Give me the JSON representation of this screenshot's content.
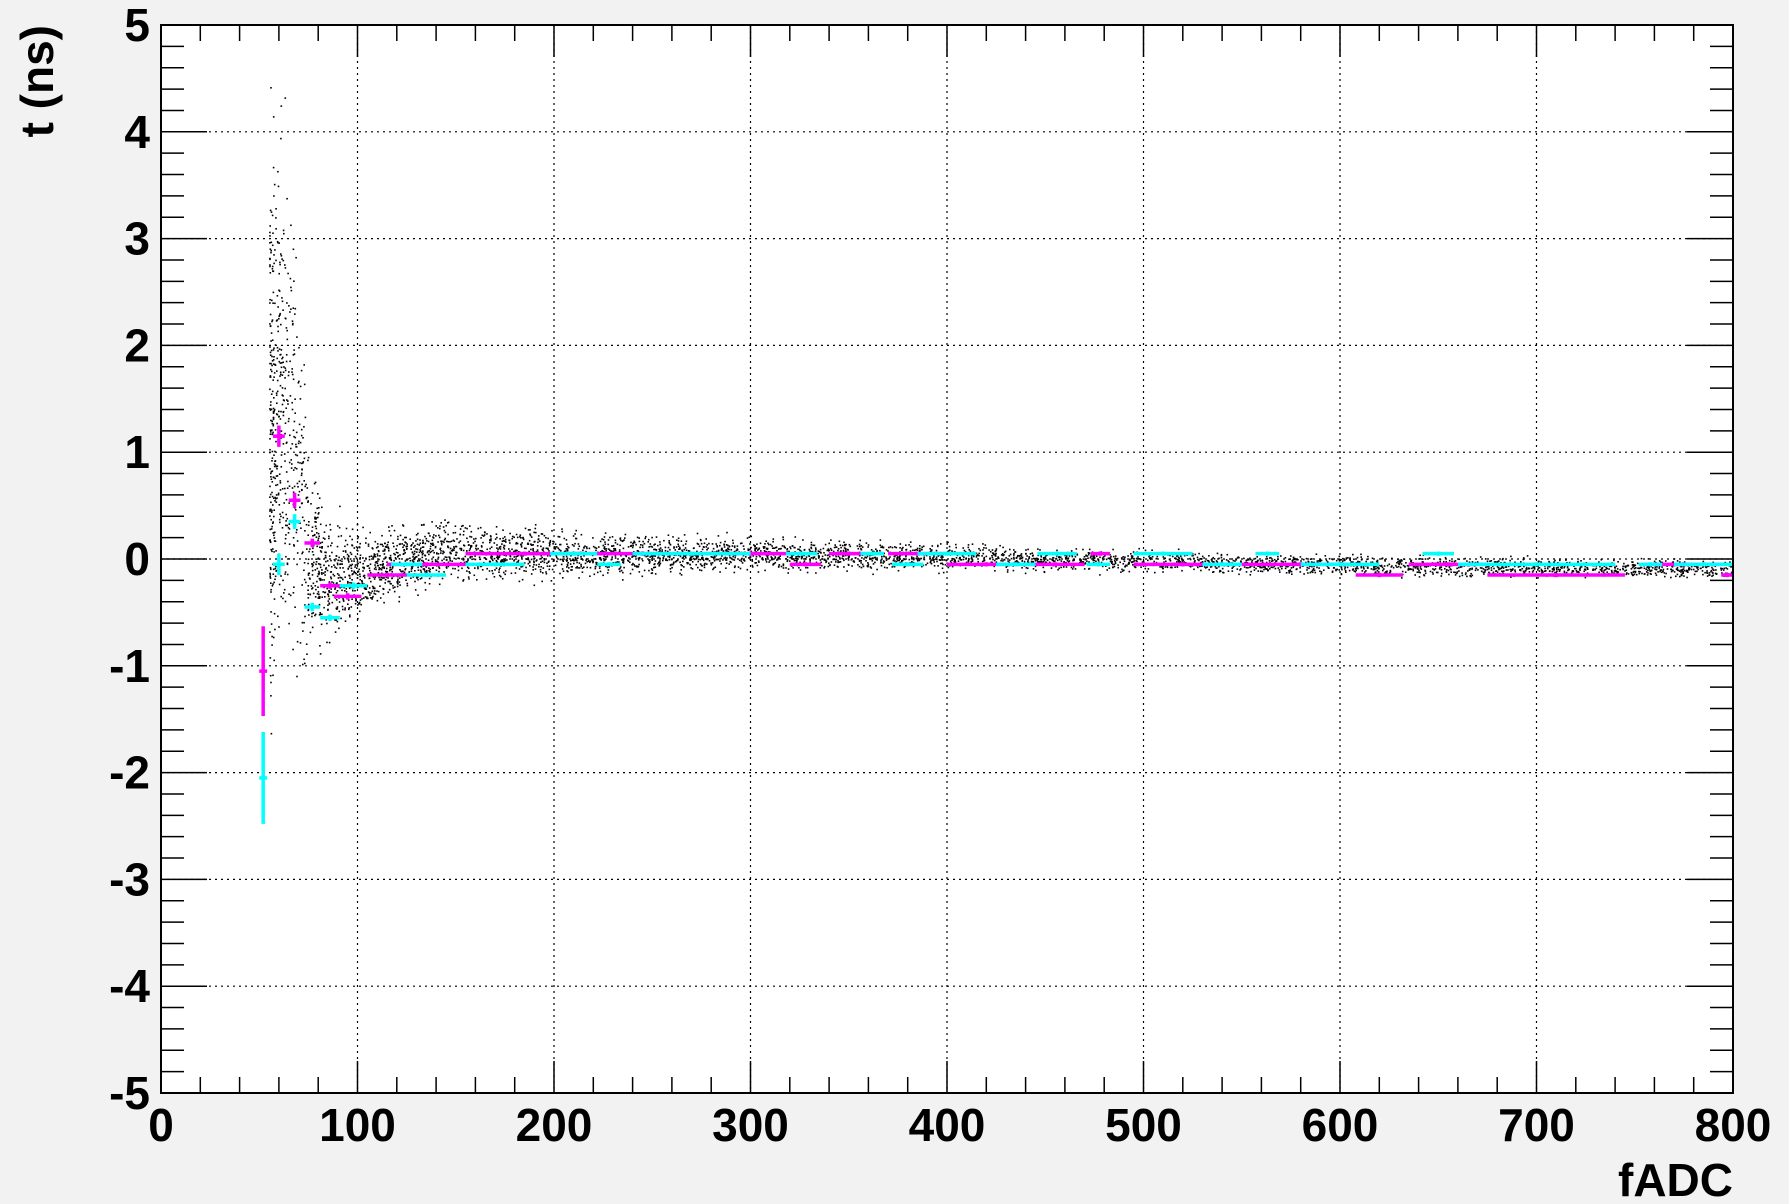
{
  "chart_data": {
    "type": "scatter",
    "title": "",
    "xlabel": "fADC",
    "ylabel": "t (ns)",
    "xlim": [
      0,
      800
    ],
    "ylim": [
      -5,
      5
    ],
    "x_ticks": [
      0,
      100,
      200,
      300,
      400,
      500,
      600,
      700,
      800
    ],
    "y_ticks": [
      -5,
      -4,
      -3,
      -2,
      -1,
      0,
      1,
      2,
      3,
      4,
      5
    ],
    "grid": true,
    "legend": "none",
    "colors": {
      "background": "#f2f2f2",
      "plot_area": "#ffffff",
      "scatter": "#000000",
      "magenta": "#ff00ff",
      "cyan": "#00ffff"
    },
    "scatter_distribution": [
      {
        "x": 55,
        "t_min": -2.2,
        "t_max": 4.9
      },
      {
        "x": 65,
        "t_min": -2.1,
        "t_max": 4.6
      },
      {
        "x": 75,
        "t_min": -1.2,
        "t_max": 1.3
      },
      {
        "x": 85,
        "t_min": -1.0,
        "t_max": 0.6
      },
      {
        "x": 100,
        "t_min": -0.7,
        "t_max": 0.4
      },
      {
        "x": 125,
        "t_min": -0.45,
        "t_max": 0.45
      },
      {
        "x": 150,
        "t_min": -0.3,
        "t_max": 0.45
      },
      {
        "x": 200,
        "t_min": -0.25,
        "t_max": 0.35
      },
      {
        "x": 300,
        "t_min": -0.15,
        "t_max": 0.25
      },
      {
        "x": 400,
        "t_min": -0.15,
        "t_max": 0.2
      },
      {
        "x": 500,
        "t_min": -0.15,
        "t_max": 0.12
      },
      {
        "x": 600,
        "t_min": -0.18,
        "t_max": 0.08
      },
      {
        "x": 700,
        "t_min": -0.2,
        "t_max": 0.05
      },
      {
        "x": 800,
        "t_min": -0.2,
        "t_max": 0.02
      }
    ],
    "series": [
      {
        "color": "magenta",
        "points": [
          {
            "x": 52,
            "y": -1.05,
            "xerr": 2,
            "yerr": 0.42
          },
          {
            "x": 60,
            "y": 1.15,
            "xerr": 3,
            "yerr": 0.1
          },
          {
            "x": 68,
            "y": 0.55,
            "xerr": 3,
            "yerr": 0.07
          },
          {
            "x": 77,
            "y": 0.15,
            "xerr": 4,
            "yerr": 0.04
          },
          {
            "x": 86,
            "y": -0.25,
            "xerr": 5,
            "yerr": 0.03
          },
          {
            "x": 95,
            "y": -0.35,
            "xerr": 7,
            "yerr": 0.03
          },
          {
            "x": 115,
            "y": -0.15,
            "xerr": 10,
            "yerr": 0.02
          },
          {
            "x": 135,
            "y": -0.05,
            "xerr": 20,
            "yerr": 0.02
          },
          {
            "x": 185,
            "y": 0.05,
            "xerr": 30,
            "yerr": 0.02
          },
          {
            "x": 245,
            "y": 0.05,
            "xerr": 35,
            "yerr": 0.02
          },
          {
            "x": 300,
            "y": 0.05,
            "xerr": 20,
            "yerr": 0.02
          },
          {
            "x": 328,
            "y": -0.05,
            "xerr": 8,
            "yerr": 0.02
          },
          {
            "x": 350,
            "y": 0.05,
            "xerr": 10,
            "yerr": 0.02
          },
          {
            "x": 385,
            "y": 0.05,
            "xerr": 15,
            "yerr": 0.02
          },
          {
            "x": 420,
            "y": -0.05,
            "xerr": 20,
            "yerr": 0.02
          },
          {
            "x": 455,
            "y": -0.05,
            "xerr": 15,
            "yerr": 0.02
          },
          {
            "x": 478,
            "y": 0.05,
            "xerr": 5,
            "yerr": 0.02
          },
          {
            "x": 520,
            "y": -0.05,
            "xerr": 25,
            "yerr": 0.02
          },
          {
            "x": 580,
            "y": -0.05,
            "xerr": 30,
            "yerr": 0.02
          },
          {
            "x": 620,
            "y": -0.15,
            "xerr": 12,
            "yerr": 0.02
          },
          {
            "x": 655,
            "y": -0.05,
            "xerr": 20,
            "yerr": 0.02
          },
          {
            "x": 710,
            "y": -0.15,
            "xerr": 35,
            "yerr": 0.02
          },
          {
            "x": 775,
            "y": -0.05,
            "xerr": 20,
            "yerr": 0.02
          },
          {
            "x": 797,
            "y": -0.15,
            "xerr": 3,
            "yerr": 0.02
          }
        ]
      },
      {
        "color": "cyan",
        "points": [
          {
            "x": 52,
            "y": -2.05,
            "xerr": 2,
            "yerr": 0.43
          },
          {
            "x": 60,
            "y": -0.05,
            "xerr": 3,
            "yerr": 0.1
          },
          {
            "x": 68,
            "y": 0.35,
            "xerr": 3,
            "yerr": 0.07
          },
          {
            "x": 77,
            "y": -0.45,
            "xerr": 4,
            "yerr": 0.04
          },
          {
            "x": 86,
            "y": -0.55,
            "xerr": 5,
            "yerr": 0.03
          },
          {
            "x": 98,
            "y": -0.25,
            "xerr": 7,
            "yerr": 0.03
          },
          {
            "x": 125,
            "y": -0.05,
            "xerr": 8,
            "yerr": 0.02
          },
          {
            "x": 135,
            "y": -0.15,
            "xerr": 10,
            "yerr": 0.02
          },
          {
            "x": 170,
            "y": -0.05,
            "xerr": 15,
            "yerr": 0.02
          },
          {
            "x": 210,
            "y": 0.05,
            "xerr": 12,
            "yerr": 0.02
          },
          {
            "x": 228,
            "y": -0.05,
            "xerr": 6,
            "yerr": 0.02
          },
          {
            "x": 270,
            "y": 0.05,
            "xerr": 30,
            "yerr": 0.02
          },
          {
            "x": 326,
            "y": 0.05,
            "xerr": 8,
            "yerr": 0.02
          },
          {
            "x": 362,
            "y": 0.05,
            "xerr": 6,
            "yerr": 0.02
          },
          {
            "x": 380,
            "y": -0.05,
            "xerr": 8,
            "yerr": 0.02
          },
          {
            "x": 400,
            "y": 0.05,
            "xerr": 15,
            "yerr": 0.02
          },
          {
            "x": 435,
            "y": -0.05,
            "xerr": 10,
            "yerr": 0.02
          },
          {
            "x": 456,
            "y": 0.05,
            "xerr": 10,
            "yerr": 0.02
          },
          {
            "x": 477,
            "y": -0.05,
            "xerr": 6,
            "yerr": 0.02
          },
          {
            "x": 510,
            "y": 0.05,
            "xerr": 15,
            "yerr": 0.02
          },
          {
            "x": 540,
            "y": -0.05,
            "xerr": 10,
            "yerr": 0.02
          },
          {
            "x": 563,
            "y": 0.05,
            "xerr": 6,
            "yerr": 0.02
          },
          {
            "x": 600,
            "y": -0.05,
            "xerr": 20,
            "yerr": 0.02
          },
          {
            "x": 650,
            "y": 0.05,
            "xerr": 8,
            "yerr": 0.02
          },
          {
            "x": 700,
            "y": -0.05,
            "xerr": 40,
            "yerr": 0.02
          },
          {
            "x": 758,
            "y": -0.05,
            "xerr": 6,
            "yerr": 0.02
          },
          {
            "x": 785,
            "y": -0.05,
            "xerr": 15,
            "yerr": 0.02
          }
        ]
      }
    ]
  }
}
